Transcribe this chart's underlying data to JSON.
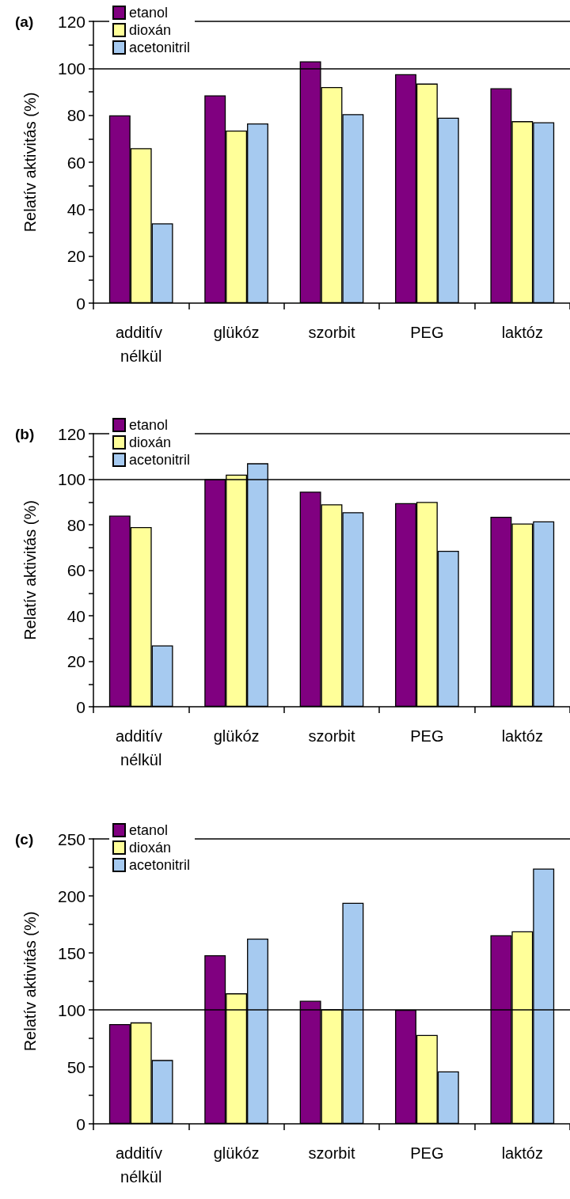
{
  "chart_data": [
    {
      "type": "bar",
      "title": "(a)",
      "ylabel": "Relatív aktivitás (%)",
      "categories": [
        "additív nélkül",
        "glükóz",
        "szorbit",
        "PEG",
        "laktóz"
      ],
      "series": [
        {
          "name": "etanol",
          "color": "#800080",
          "values": [
            80,
            88.5,
            103,
            97.5,
            91.5
          ]
        },
        {
          "name": "dioxán",
          "color": "#ffff99",
          "values": [
            66,
            73.5,
            92,
            93.5,
            77.5
          ]
        },
        {
          "name": "acetonitril",
          "color": "#a6caf0",
          "values": [
            34,
            76.5,
            80.5,
            79,
            77
          ]
        }
      ],
      "ylim": [
        0,
        120
      ],
      "yticks": [
        0,
        {
          "value": 10,
          "label": null
        },
        20,
        {
          "value": 30,
          "label": null
        },
        40,
        {
          "value": 50,
          "label": null
        },
        60,
        {
          "value": 70,
          "label": null
        },
        80,
        {
          "value": 90,
          "label": null
        },
        100,
        {
          "value": 110,
          "label": null
        },
        120
      ],
      "ref_lines": [
        {
          "axis": "y",
          "value": 100,
          "color": "#000000"
        }
      ],
      "grid": false,
      "legend": "top left"
    },
    {
      "type": "bar",
      "title": "(b)",
      "ylabel": "Relatív aktivitás (%)",
      "categories": [
        "additív nélkül",
        "glükóz",
        "szorbit",
        "PEG",
        "laktóz"
      ],
      "series": [
        {
          "name": "etanol",
          "color": "#800080",
          "values": [
            84,
            100,
            94.5,
            89.5,
            83.5
          ]
        },
        {
          "name": "dioxán",
          "color": "#ffff99",
          "values": [
            79,
            102,
            89,
            90,
            80.5
          ]
        },
        {
          "name": "acetonitril",
          "color": "#a6caf0",
          "values": [
            27,
            107,
            85.5,
            68.5,
            81.5
          ]
        }
      ],
      "ylim": [
        0,
        120
      ],
      "yticks": [
        0,
        {
          "value": 10,
          "label": null
        },
        20,
        {
          "value": 30,
          "label": null
        },
        40,
        {
          "value": 50,
          "label": null
        },
        60,
        {
          "value": 70,
          "label": null
        },
        80,
        {
          "value": 90,
          "label": null
        },
        100,
        {
          "value": 110,
          "label": null
        },
        120
      ],
      "ref_lines": [
        {
          "axis": "y",
          "value": 100,
          "color": "#000000"
        }
      ],
      "grid": false,
      "legend": "top left"
    },
    {
      "type": "bar",
      "title": "(c)",
      "ylabel": "Relatív aktivitás (%)",
      "categories": [
        "additív nélkül",
        "glükóz",
        "szorbit",
        "PEG",
        "laktóz"
      ],
      "series": [
        {
          "name": "etanol",
          "color": "#800080",
          "values": [
            87.5,
            148,
            108,
            100,
            165.5
          ]
        },
        {
          "name": "dioxán",
          "color": "#ffff99",
          "values": [
            89,
            114.5,
            100.5,
            78,
            169
          ]
        },
        {
          "name": "acetonitril",
          "color": "#a6caf0",
          "values": [
            56,
            162.5,
            194,
            46,
            224
          ]
        }
      ],
      "ylim": [
        0,
        250
      ],
      "yticks": [
        0,
        {
          "value": 25,
          "label": null
        },
        50,
        {
          "value": 75,
          "label": null
        },
        100,
        {
          "value": 125,
          "label": null
        },
        150,
        {
          "value": 175,
          "label": null
        },
        200,
        {
          "value": 225,
          "label": null
        },
        250
      ],
      "ref_lines": [
        {
          "axis": "y",
          "value": 100,
          "color": "#000000"
        }
      ],
      "grid": false,
      "legend": "top left"
    }
  ]
}
